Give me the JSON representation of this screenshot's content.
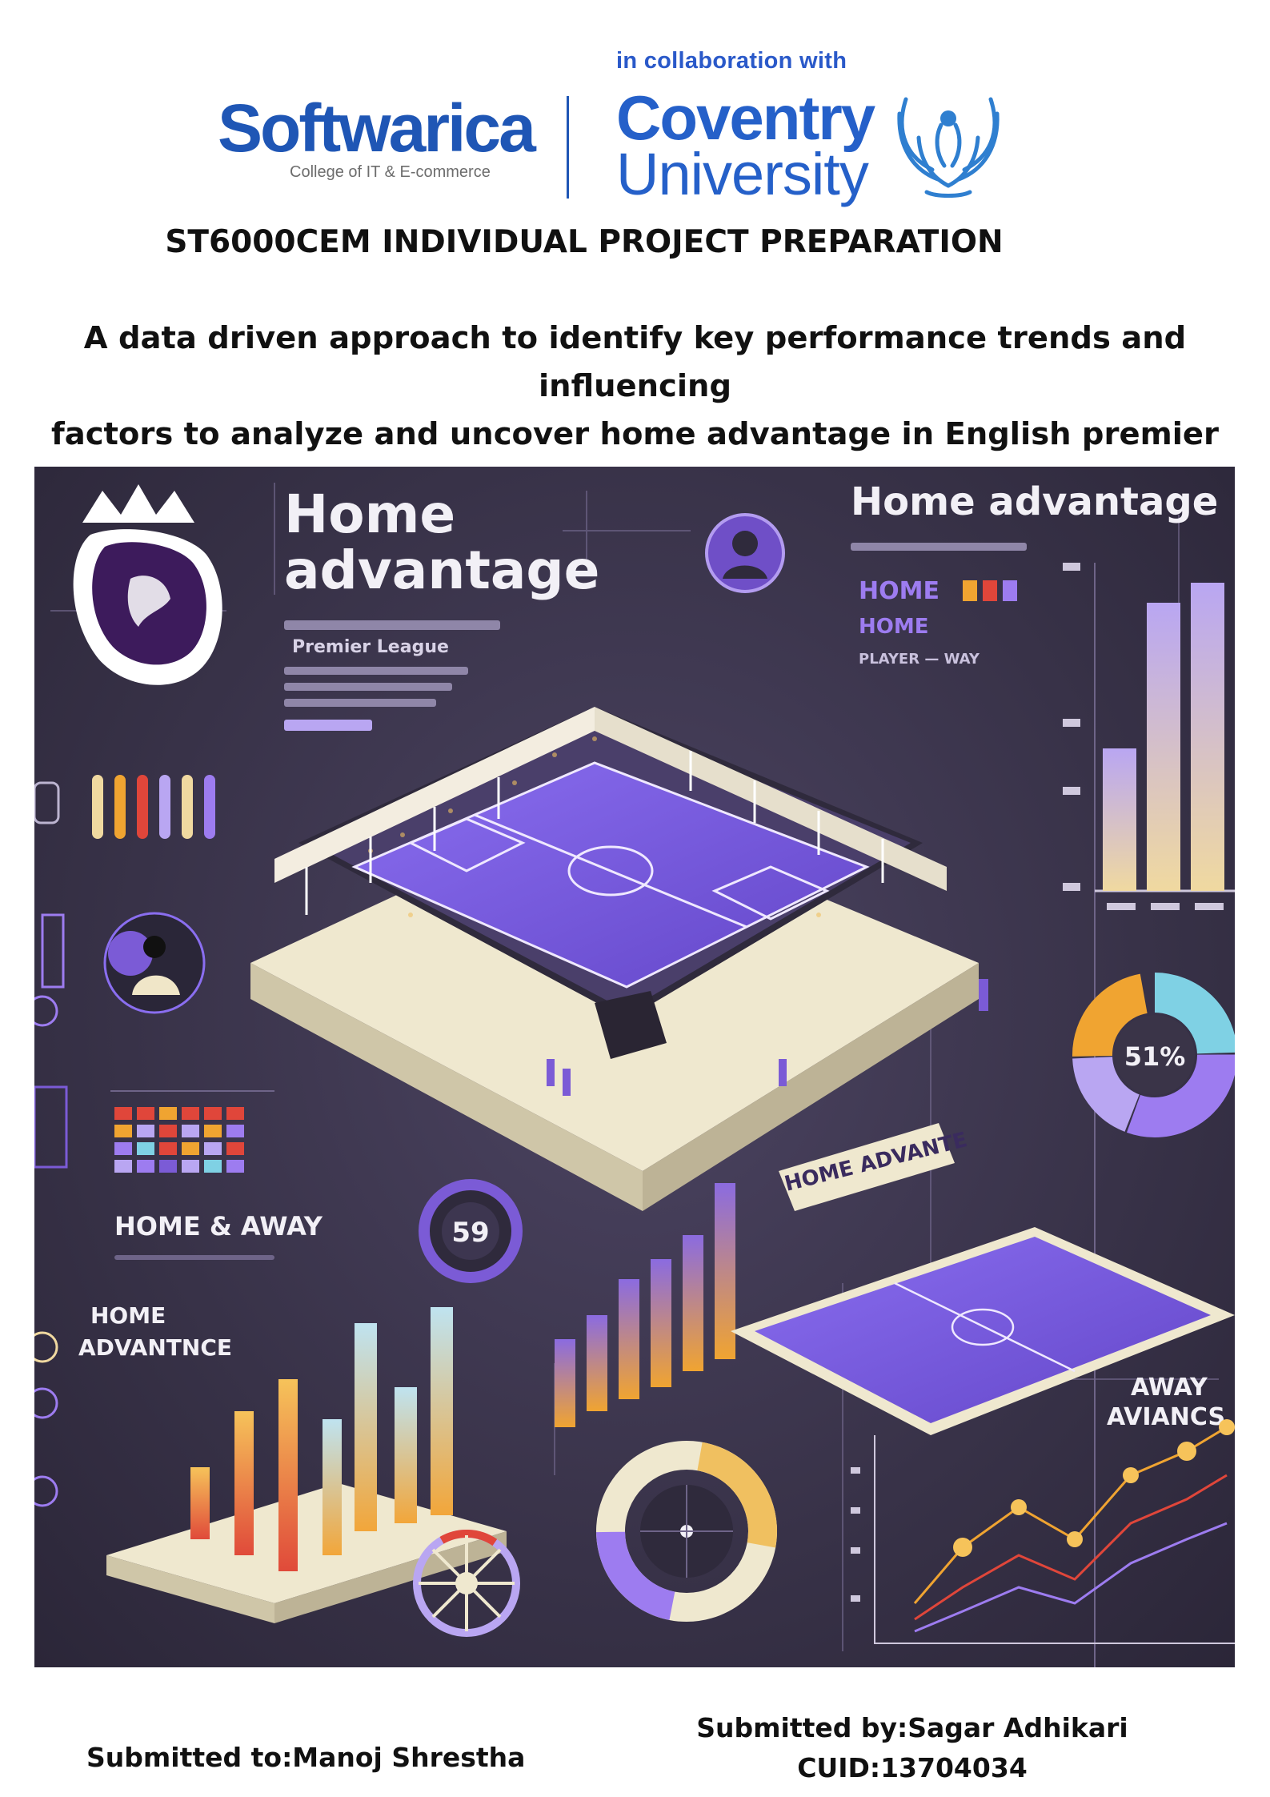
{
  "header": {
    "collaboration_text": "in collaboration with",
    "softwarica": {
      "name": "Softwarica",
      "subtitle": "College of IT & E-commerce"
    },
    "coventry": {
      "line1": "Coventry",
      "line2": "University"
    },
    "brand_colors": {
      "softwarica": "#1f56b5",
      "coventry": "#2560c9"
    }
  },
  "module_title": "ST6000CEM INDIVIDUAL PROJECT PREPARATION",
  "project_title": {
    "line1": "A data driven approach to identify key performance trends and influencing",
    "line2": "factors to analyze and uncover home advantage in English premier league."
  },
  "illustration": {
    "headline": {
      "line1": "Home",
      "line2": "advantage"
    },
    "headline_right": "Home advantage",
    "league_caption": "Premier League",
    "badge_number": "59",
    "donut_center": "51%",
    "panel_labels": {
      "home_away": "HOME & AWAY",
      "home_advantage": {
        "line1": "HOME",
        "line2": "ADVANTNCE"
      },
      "home_advante_banner": "HOME ADVANTE",
      "away_advancs": {
        "line1": "AWAY",
        "line2": "AVIANCS"
      },
      "legend_rows": [
        "HOME",
        "HOME",
        "PLAYER — WAY"
      ]
    },
    "palette": {
      "purple": "#7b5bd6",
      "cream": "#efe8cf",
      "orange": "#f0a431",
      "red": "#e0463a",
      "teal": "#7fd1e4"
    }
  },
  "footer": {
    "submitted_to": "Submitted to:Manoj Shrestha",
    "submitted_by": "Submitted by:Sagar Adhikari",
    "cuid": "CUID:13704034"
  }
}
